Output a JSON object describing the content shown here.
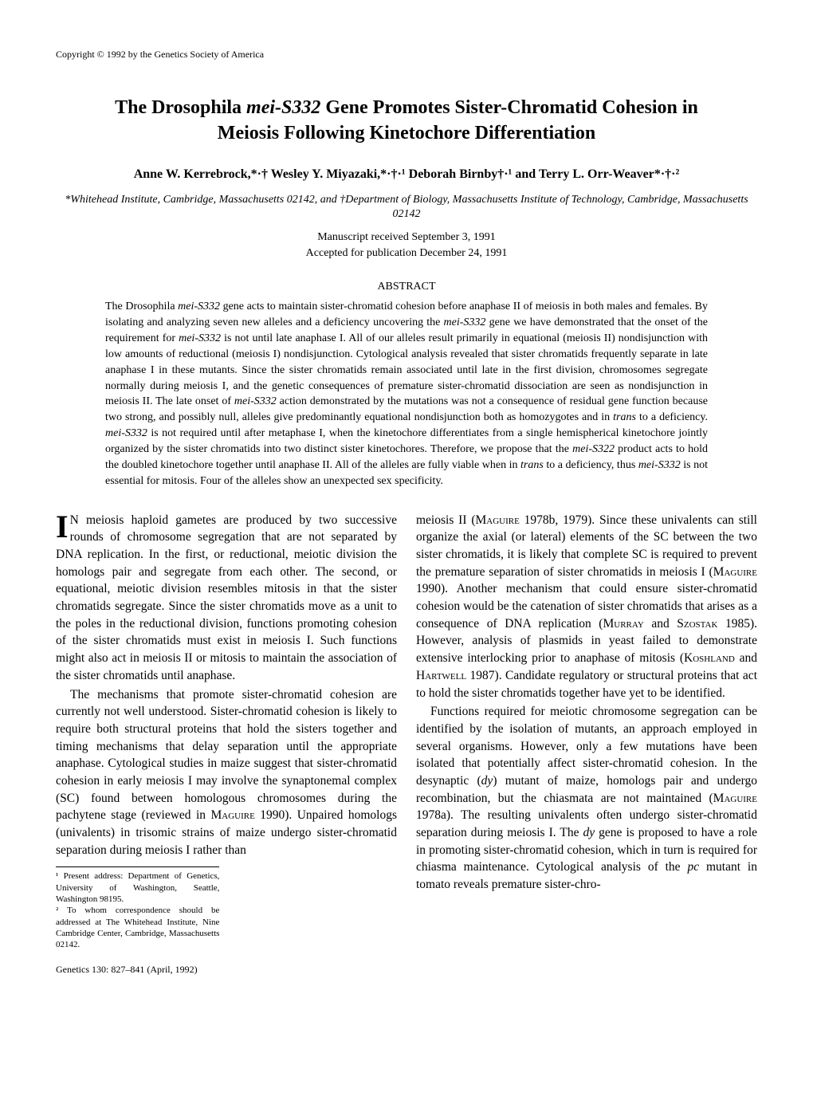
{
  "copyright": "Copyright © 1992 by the Genetics Society of America",
  "title_line1_pre": "The Drosophila ",
  "title_line1_italic": "mei-S332",
  "title_line1_post": " Gene Promotes Sister-Chromatid Cohesion in",
  "title_line2": "Meiosis Following Kinetochore Differentiation",
  "authors": "Anne W. Kerrebrock,*·† Wesley Y. Miyazaki,*·†·¹ Deborah Birnby†·¹ and Terry L. Orr-Weaver*·†·²",
  "affiliations": "*Whitehead Institute, Cambridge, Massachusetts 02142, and †Department of Biology, Massachusetts Institute of Technology, Cambridge, Massachusetts 02142",
  "date_received": "Manuscript received September 3, 1991",
  "date_accepted": "Accepted for publication December 24, 1991",
  "abstract_heading": "ABSTRACT",
  "abstract_body": "The Drosophila <i>mei-S332</i> gene acts to maintain sister-chromatid cohesion before anaphase II of meiosis in both males and females. By isolating and analyzing seven new alleles and a deficiency uncovering the <i>mei-S332</i> gene we have demonstrated that the onset of the requirement for <i>mei-S332</i> is not until late anaphase I. All of our alleles result primarily in equational (meiosis II) nondisjunction with low amounts of reductional (meiosis I) nondisjunction. Cytological analysis revealed that sister chromatids frequently separate in late anaphase I in these mutants. Since the sister chromatids remain associated until late in the first division, chromosomes segregate normally during meiosis I, and the genetic consequences of premature sister-chromatid dissociation are seen as nondisjunction in meiosis II. The late onset of <i>mei-S332</i> action demonstrated by the mutations was not a consequence of residual gene function because two strong, and possibly null, alleles give predominantly equational nondisjunction both as homozygotes and in <i>trans</i> to a deficiency. <i>mei-S332</i> is not required until after metaphase I, when the kinetochore differentiates from a single hemispherical kinetochore jointly organized by the sister chromatids into two distinct sister kinetochores. Therefore, we propose that the <i>mei-S322</i> product acts to hold the doubled kinetochore together until anaphase II. All of the alleles are fully viable when in <i>trans</i> to a deficiency, thus <i>mei-S332</i> is not essential for mitosis. Four of the alleles show an unexpected sex specificity.",
  "col1_p1": "N meiosis haploid gametes are produced by two successive rounds of chromosome segregation that are not separated by DNA replication. In the first, or reductional, meiotic division the homologs pair and segregate from each other. The second, or equational, meiotic division resembles mitosis in that the sister chromatids segregate. Since the sister chromatids move as a unit to the poles in the reductional division, functions promoting cohesion of the sister chromatids must exist in meiosis I. Such functions might also act in meiosis II or mitosis to maintain the association of the sister chromatids until anaphase.",
  "col1_p2": "The mechanisms that promote sister-chromatid cohesion are currently not well understood. Sister-chromatid cohesion is likely to require both structural proteins that hold the sisters together and timing mechanisms that delay separation until the appropriate anaphase. Cytological studies in maize suggest that sister-chromatid cohesion in early meiosis I may involve the synaptonemal complex (SC) found between homologous chromosomes during the pachytene stage (reviewed in <span class=\"smallcaps\">Maguire</span> 1990). Unpaired homologs (univalents) in trisomic strains of maize undergo sister-chromatid separation during meiosis I rather than",
  "col2_p1": "meiosis II (<span class=\"smallcaps\">Maguire</span> 1978b, 1979). Since these univalents can still organize the axial (or lateral) elements of the SC between the two sister chromatids, it is likely that complete SC is required to prevent the premature separation of sister chromatids in meiosis I (<span class=\"smallcaps\">Maguire</span> 1990). Another mechanism that could ensure sister-chromatid cohesion would be the catenation of sister chromatids that arises as a consequence of DNA replication (<span class=\"smallcaps\">Murray</span> and <span class=\"smallcaps\">Szostak</span> 1985). However, analysis of plasmids in yeast failed to demonstrate extensive interlocking prior to anaphase of mitosis (<span class=\"smallcaps\">Koshland</span> and <span class=\"smallcaps\">Hartwell</span> 1987). Candidate regulatory or structural proteins that act to hold the sister chromatids together have yet to be identified.",
  "col2_p2": "Functions required for meiotic chromosome segregation can be identified by the isolation of mutants, an approach employed in several organisms. However, only a few mutations have been isolated that potentially affect sister-chromatid cohesion. In the desynaptic (<i>dy</i>) mutant of maize, homologs pair and undergo recombination, but the chiasmata are not maintained (<span class=\"smallcaps\">Maguire</span> 1978a). The resulting univalents often undergo sister-chromatid separation during meiosis I. The <i>dy</i> gene is proposed to have a role in promoting sister-chromatid cohesion, which in turn is required for chiasma maintenance. Cytological analysis of the <i>pc</i> mutant in tomato reveals premature sister-chro-",
  "footnote1": "¹ Present address: Department of Genetics, University of Washington, Seattle, Washington 98195.",
  "footnote2": "² To whom correspondence should be addressed at The Whitehead Institute, Nine Cambridge Center, Cambridge, Massachusetts 02142.",
  "footer": "Genetics 130: 827–841 (April, 1992)"
}
